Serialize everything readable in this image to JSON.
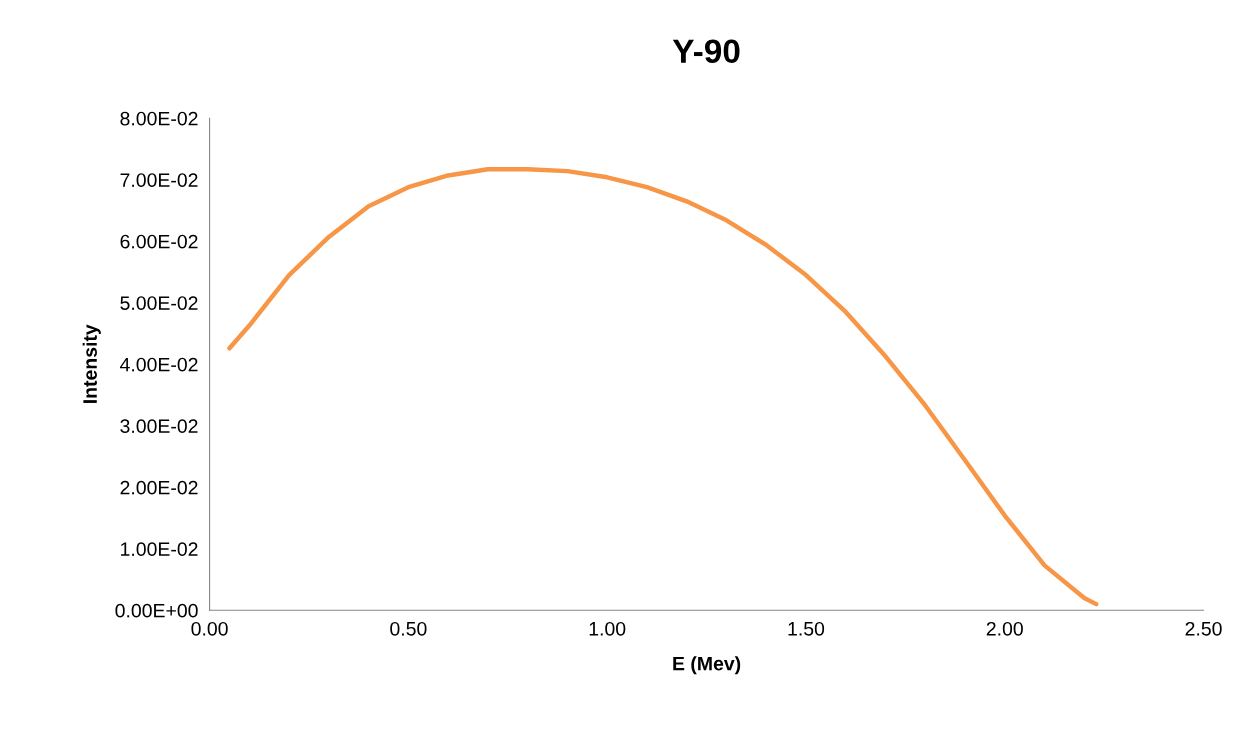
{
  "chart_data": {
    "type": "line",
    "title": "Y-90",
    "xlabel": "E (Mev)",
    "ylabel": "Intensity",
    "x": [
      0.05,
      0.1,
      0.2,
      0.3,
      0.4,
      0.5,
      0.6,
      0.7,
      0.8,
      0.9,
      1.0,
      1.1,
      1.2,
      1.3,
      1.4,
      1.5,
      1.6,
      1.7,
      1.8,
      1.9,
      2.0,
      2.1,
      2.2,
      2.23
    ],
    "series": [
      {
        "color": "#f79646",
        "values": [
          0.0426,
          0.0463,
          0.0545,
          0.0607,
          0.0657,
          0.0688,
          0.0707,
          0.0717,
          0.0717,
          0.0714,
          0.0704,
          0.0688,
          0.0665,
          0.0634,
          0.0594,
          0.0545,
          0.0485,
          0.0413,
          0.0333,
          0.0244,
          0.0154,
          0.0073,
          0.002,
          0.001
        ]
      }
    ],
    "xlim": [
      0,
      2.5
    ],
    "xticks": [
      {
        "value": 0,
        "label": "0.00"
      },
      {
        "value": 0.5,
        "label": "0.50"
      },
      {
        "value": 1.0,
        "label": "1.00"
      },
      {
        "value": 1.5,
        "label": "1.50"
      },
      {
        "value": 2.0,
        "label": "2.00"
      },
      {
        "value": 2.5,
        "label": "2.50"
      }
    ],
    "ylim": [
      0,
      0.08
    ],
    "yticks": [
      {
        "value": 0,
        "label": "0.00E+00"
      },
      {
        "value": 0.01,
        "label": "1.00E-02"
      },
      {
        "value": 0.02,
        "label": "2.00E-02"
      },
      {
        "value": 0.03,
        "label": "3.00E-02"
      },
      {
        "value": 0.04,
        "label": "4.00E-02"
      },
      {
        "value": 0.05,
        "label": "5.00E-02"
      },
      {
        "value": 0.06,
        "label": "6.00E-02"
      },
      {
        "value": 0.07,
        "label": "7.00E-02"
      },
      {
        "value": 0.08,
        "label": "8.00E-02"
      }
    ],
    "grid": false,
    "legend": false,
    "marker": "none",
    "line_style": "solid"
  }
}
